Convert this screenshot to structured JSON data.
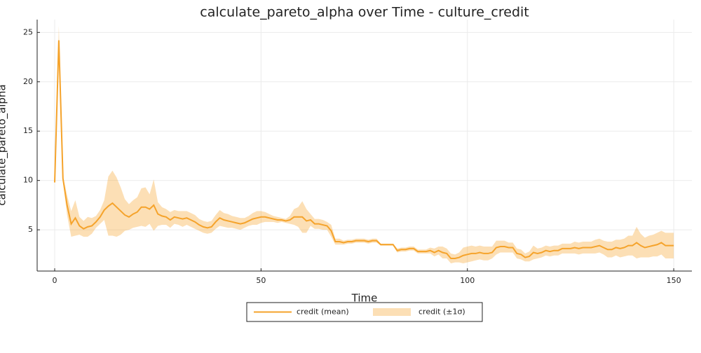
{
  "chart_data": {
    "type": "line_band",
    "title": "calculate_pareto_alpha over Time - culture_credit",
    "xlabel": "Time",
    "ylabel": "calculate_pareto_alpha",
    "x": [
      0,
      1,
      2,
      3,
      4,
      5,
      6,
      7,
      8,
      9,
      10,
      11,
      12,
      13,
      14,
      15,
      16,
      17,
      18,
      19,
      20,
      21,
      22,
      23,
      24,
      25,
      26,
      27,
      28,
      29,
      30,
      31,
      32,
      33,
      34,
      35,
      36,
      37,
      38,
      39,
      40,
      41,
      42,
      43,
      44,
      45,
      46,
      47,
      48,
      49,
      50,
      51,
      52,
      53,
      54,
      55,
      56,
      57,
      58,
      59,
      60,
      61,
      62,
      63,
      64,
      65,
      66,
      67,
      68,
      69,
      70,
      71,
      72,
      73,
      74,
      75,
      76,
      77,
      78,
      79,
      80,
      81,
      82,
      83,
      84,
      85,
      86,
      87,
      88,
      89,
      90,
      91,
      92,
      93,
      94,
      95,
      96,
      97,
      98,
      99,
      100,
      101,
      102,
      103,
      104,
      105,
      106,
      107,
      108,
      109,
      110,
      111,
      112,
      113,
      114,
      115,
      116,
      117,
      118,
      119,
      120,
      121,
      122,
      123,
      124,
      125,
      126,
      127,
      128,
      129,
      130,
      131,
      132,
      133,
      134,
      135,
      136,
      137,
      138,
      139,
      140,
      141,
      142,
      143,
      144,
      145,
      146,
      147,
      148,
      149,
      150
    ],
    "series": [
      {
        "name": "credit (mean)",
        "color": "#f5a32b",
        "values": [
          9.8,
          24.2,
          10.2,
          7.5,
          5.6,
          6.2,
          5.4,
          5.1,
          5.3,
          5.4,
          5.8,
          6.3,
          7.0,
          7.4,
          7.7,
          7.3,
          6.9,
          6.5,
          6.3,
          6.6,
          6.8,
          7.3,
          7.3,
          7.1,
          7.5,
          6.6,
          6.4,
          6.3,
          6.0,
          6.3,
          6.2,
          6.1,
          6.2,
          6.0,
          5.8,
          5.5,
          5.3,
          5.2,
          5.3,
          5.8,
          6.2,
          6.0,
          5.9,
          5.8,
          5.7,
          5.6,
          5.7,
          5.9,
          6.1,
          6.2,
          6.3,
          6.3,
          6.2,
          6.1,
          6.0,
          6.0,
          5.9,
          6.0,
          6.3,
          6.3,
          6.3,
          5.9,
          6.0,
          5.6,
          5.6,
          5.5,
          5.4,
          4.9,
          3.8,
          3.8,
          3.7,
          3.8,
          3.8,
          3.9,
          3.9,
          3.9,
          3.8,
          3.9,
          3.9,
          3.5,
          3.5,
          3.5,
          3.5,
          2.9,
          3.0,
          3.0,
          3.1,
          3.1,
          2.8,
          2.8,
          2.8,
          2.9,
          2.7,
          2.9,
          2.7,
          2.6,
          2.1,
          2.1,
          2.2,
          2.4,
          2.5,
          2.6,
          2.6,
          2.7,
          2.6,
          2.6,
          2.7,
          3.2,
          3.3,
          3.3,
          3.2,
          3.2,
          2.6,
          2.5,
          2.2,
          2.3,
          2.7,
          2.6,
          2.7,
          2.9,
          2.8,
          2.9,
          2.9,
          3.1,
          3.1,
          3.1,
          3.2,
          3.1,
          3.2,
          3.2,
          3.2,
          3.3,
          3.4,
          3.2,
          3.0,
          3.0,
          3.2,
          3.1,
          3.2,
          3.4,
          3.4,
          3.7,
          3.4,
          3.2,
          3.3,
          3.4,
          3.5,
          3.7,
          3.4,
          3.4,
          3.4
        ]
      },
      {
        "name": "credit (±1σ)",
        "color": "#f5a32b",
        "values": [
          0.1,
          1.5,
          0.3,
          1.0,
          1.3,
          1.8,
          0.9,
          0.8,
          1.0,
          0.8,
          0.6,
          0.7,
          1.0,
          3.0,
          3.3,
          3.0,
          2.4,
          1.6,
          1.3,
          1.4,
          1.5,
          1.9,
          2.0,
          1.5,
          2.6,
          1.2,
          0.9,
          0.8,
          0.8,
          0.7,
          0.7,
          0.8,
          0.7,
          0.7,
          0.7,
          0.6,
          0.6,
          0.6,
          0.6,
          0.7,
          0.8,
          0.7,
          0.7,
          0.6,
          0.6,
          0.6,
          0.5,
          0.5,
          0.6,
          0.7,
          0.6,
          0.5,
          0.4,
          0.3,
          0.3,
          0.2,
          0.2,
          0.4,
          0.8,
          1.0,
          1.6,
          1.2,
          0.6,
          0.5,
          0.5,
          0.5,
          0.4,
          0.6,
          0.3,
          0.3,
          0.2,
          0.2,
          0.2,
          0.2,
          0.2,
          0.2,
          0.2,
          0.2,
          0.2,
          0.1,
          0.1,
          0.1,
          0.1,
          0.2,
          0.2,
          0.2,
          0.2,
          0.2,
          0.2,
          0.2,
          0.2,
          0.3,
          0.4,
          0.4,
          0.6,
          0.5,
          0.5,
          0.4,
          0.5,
          0.8,
          0.8,
          0.8,
          0.7,
          0.7,
          0.7,
          0.7,
          0.6,
          0.7,
          0.6,
          0.6,
          0.5,
          0.5,
          0.5,
          0.5,
          0.4,
          0.5,
          0.7,
          0.5,
          0.5,
          0.5,
          0.5,
          0.5,
          0.5,
          0.5,
          0.5,
          0.5,
          0.6,
          0.6,
          0.6,
          0.6,
          0.6,
          0.7,
          0.7,
          0.7,
          0.8,
          0.8,
          0.8,
          0.9,
          0.9,
          1.0,
          1.0,
          1.6,
          1.2,
          1.0,
          1.1,
          1.1,
          1.2,
          1.2,
          1.3,
          1.3,
          1.3
        ]
      }
    ],
    "xlim": [
      -4.25,
      154.4
    ],
    "ylim": [
      0.82,
      26.3
    ],
    "xticks": [
      0,
      50,
      100,
      150
    ],
    "yticks": [
      5,
      10,
      15,
      20,
      25
    ],
    "grid": true,
    "legend": "bottom"
  }
}
